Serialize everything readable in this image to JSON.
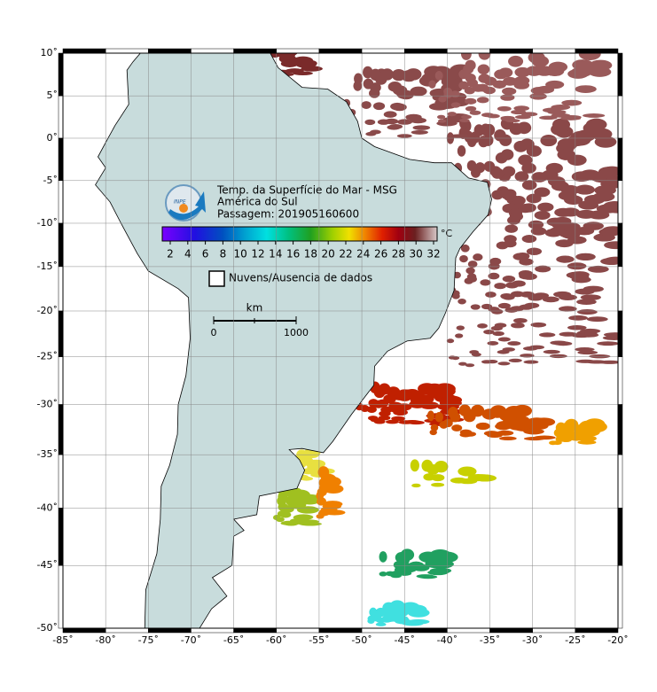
{
  "header": {
    "logo": "INPE",
    "lines": [
      "Temp. da Superfície do Mar - MSG",
      "América do Sul",
      "Passagem: 201905160600"
    ]
  },
  "colorbar": {
    "ticks": [
      2,
      4,
      6,
      8,
      10,
      12,
      14,
      16,
      18,
      20,
      22,
      24,
      26,
      28,
      30,
      32
    ],
    "unit": "°C"
  },
  "legend": {
    "label": "Nuvens/Ausencia de dados"
  },
  "scale_bar": {
    "unit": "km",
    "labels": [
      "0",
      "1000"
    ]
  },
  "axes": {
    "lon_ticks": [
      {
        "value": -85,
        "label": "-85˚"
      },
      {
        "value": -80,
        "label": "-80˚"
      },
      {
        "value": -75,
        "label": "-75˚"
      },
      {
        "value": -70,
        "label": "-70˚"
      },
      {
        "value": -65,
        "label": "-65˚"
      },
      {
        "value": -60,
        "label": "-60˚"
      },
      {
        "value": -55,
        "label": "-55˚"
      },
      {
        "value": -50,
        "label": "-50˚"
      },
      {
        "value": -45,
        "label": "-45˚"
      },
      {
        "value": -40,
        "label": "-40˚"
      },
      {
        "value": -35,
        "label": "-35˚"
      },
      {
        "value": -30,
        "label": "-30˚"
      },
      {
        "value": -25,
        "label": "-25˚"
      },
      {
        "value": -20,
        "label": "-20˚"
      }
    ],
    "lat_ticks": [
      {
        "value": 10,
        "label": "10˚"
      },
      {
        "value": 5,
        "label": "5˚"
      },
      {
        "value": 0,
        "label": "0˚"
      },
      {
        "value": -5,
        "label": "-5˚"
      },
      {
        "value": -10,
        "label": "-10˚"
      },
      {
        "value": -15,
        "label": "-15˚"
      },
      {
        "value": -20,
        "label": "-20˚"
      },
      {
        "value": -25,
        "label": "-25˚"
      },
      {
        "value": -30,
        "label": "-30˚"
      },
      {
        "value": -35,
        "label": "-35˚"
      },
      {
        "value": -40,
        "label": "-40˚"
      },
      {
        "value": -45,
        "label": "-45˚"
      },
      {
        "value": -50,
        "label": "-50˚"
      }
    ]
  }
}
